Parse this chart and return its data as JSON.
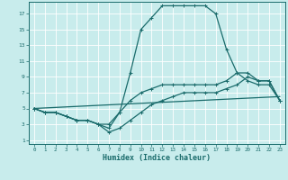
{
  "xlabel": "Humidex (Indice chaleur)",
  "bg_color": "#c8ecec",
  "grid_color": "#ffffff",
  "line_color": "#1a6b6b",
  "xlim": [
    -0.5,
    23.5
  ],
  "ylim": [
    0.5,
    18.5
  ],
  "xticks": [
    0,
    1,
    2,
    3,
    4,
    5,
    6,
    7,
    8,
    9,
    10,
    11,
    12,
    13,
    14,
    15,
    16,
    17,
    18,
    19,
    20,
    21,
    22,
    23
  ],
  "yticks": [
    1,
    3,
    5,
    7,
    9,
    11,
    13,
    15,
    17
  ],
  "line1_x": [
    0,
    1,
    2,
    3,
    4,
    5,
    6,
    7,
    8,
    9,
    10,
    11,
    12,
    13,
    14,
    15,
    16,
    17,
    18,
    19,
    20,
    21,
    22,
    23
  ],
  "line1_y": [
    5,
    4.5,
    4.5,
    4,
    3.5,
    3.5,
    3,
    3,
    4.5,
    9.5,
    15,
    16.5,
    18,
    18,
    18,
    18,
    18,
    17,
    12.5,
    9.5,
    8.5,
    8,
    8,
    6
  ],
  "line2_x": [
    0,
    1,
    2,
    3,
    4,
    5,
    6,
    7,
    8,
    9,
    10,
    11,
    12,
    13,
    14,
    15,
    16,
    17,
    18,
    19,
    20,
    21,
    22,
    23
  ],
  "line2_y": [
    5,
    4.5,
    4.5,
    4,
    3.5,
    3.5,
    3,
    2,
    2.5,
    3.5,
    4.5,
    5.5,
    6,
    6.5,
    7,
    7,
    7,
    7,
    7.5,
    8,
    9,
    8.5,
    8.5,
    6
  ],
  "line3_x": [
    0,
    1,
    2,
    3,
    4,
    5,
    6,
    7,
    8,
    9,
    10,
    11,
    12,
    13,
    14,
    15,
    16,
    17,
    18,
    19,
    20,
    21,
    22,
    23
  ],
  "line3_y": [
    5,
    4.5,
    4.5,
    4,
    3.5,
    3.5,
    3,
    2.5,
    4.5,
    6,
    7,
    7.5,
    8,
    8,
    8,
    8,
    8,
    8,
    8.5,
    9.5,
    9.5,
    8.5,
    8.5,
    6
  ],
  "line4_x": [
    0,
    23
  ],
  "line4_y": [
    5,
    6.5
  ]
}
